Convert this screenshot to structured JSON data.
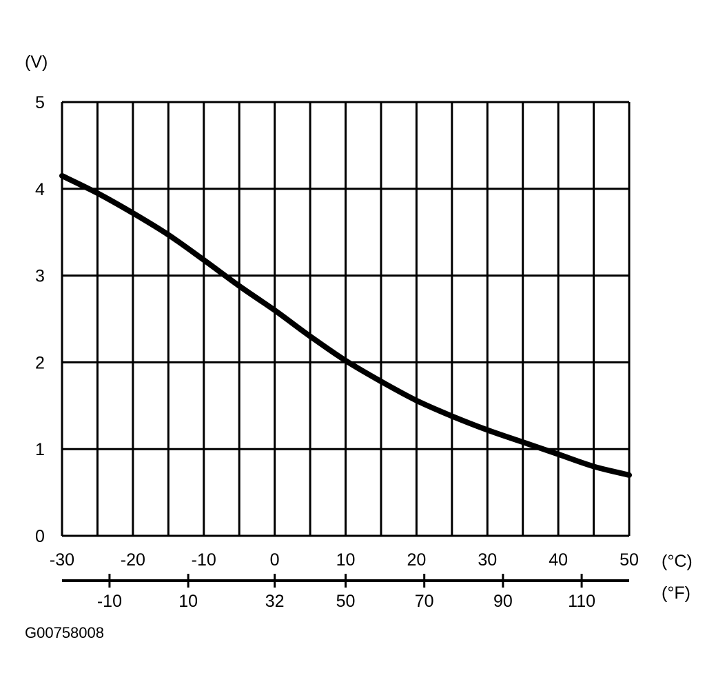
{
  "chart_data": {
    "type": "line",
    "ylabel": "(V)",
    "xlabel": "(°C)",
    "x2label": "(°F)",
    "figure_code": "G00758008",
    "xlim": [
      -30,
      50
    ],
    "ylim": [
      0,
      5
    ],
    "grid": true,
    "x_ticks": [
      -30,
      -20,
      -10,
      0,
      10,
      20,
      30,
      40,
      50
    ],
    "y_ticks": [
      0,
      1,
      2,
      3,
      4,
      5
    ],
    "x2_ticks": [
      {
        "label": "-10",
        "celsius": -23.3
      },
      {
        "label": "10",
        "celsius": -12.2
      },
      {
        "label": "32",
        "celsius": 0
      },
      {
        "label": "50",
        "celsius": 10
      },
      {
        "label": "70",
        "celsius": 21.1
      },
      {
        "label": "90",
        "celsius": 32.2
      },
      {
        "label": "110",
        "celsius": 43.3
      }
    ],
    "series": [
      {
        "x": [
          -30,
          -25,
          -20,
          -15,
          -10,
          -5,
          0,
          5,
          10,
          15,
          20,
          25,
          30,
          35,
          40,
          45,
          50
        ],
        "y": [
          4.15,
          3.95,
          3.72,
          3.47,
          3.18,
          2.88,
          2.6,
          2.3,
          2.02,
          1.78,
          1.56,
          1.38,
          1.22,
          1.08,
          0.94,
          0.8,
          0.7
        ]
      }
    ]
  }
}
